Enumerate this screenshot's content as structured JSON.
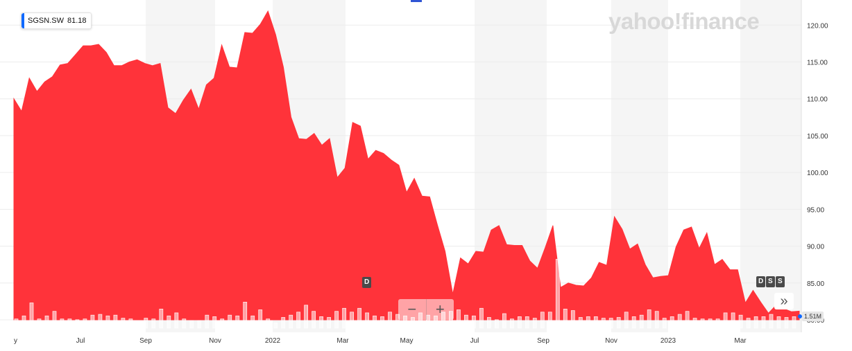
{
  "ticker": {
    "symbol": "SGSN.SW",
    "last_price": "81.18",
    "color": "#0f69ff"
  },
  "branding": {
    "logo_text": "yahoo!finance"
  },
  "markers": {
    "dividend": "D",
    "split_marks": [
      "D",
      "S",
      "S"
    ]
  },
  "controls": {
    "zoom_out_icon": "minus-icon",
    "zoom_in_icon": "plus-icon",
    "nav_icon": "double-chevron-right-icon",
    "zoom_out_label": "−",
    "zoom_in_label": "+",
    "nav_label": "»"
  },
  "volume_tag": "1.51M",
  "colors": {
    "area": "#ff333a",
    "volume_bar": "#ffffff",
    "band": "#f5f5f5"
  },
  "chart_data": {
    "type": "area",
    "title": "",
    "xlabel": "",
    "ylabel": "",
    "ylim": [
      80,
      122
    ],
    "x_ticks": [
      "y",
      "Jul",
      "Sep",
      "Nov",
      "2022",
      "Mar",
      "May",
      "Jul",
      "Sep",
      "Nov",
      "2023",
      "Mar"
    ],
    "y_ticks": [
      "80.00",
      "85.00",
      "90.00",
      "95.00",
      "100.00",
      "105.00",
      "110.00",
      "115.00",
      "120.00"
    ],
    "series": [
      {
        "values": [
          110.0,
          108.3,
          112.8,
          111.0,
          112.3,
          113.0,
          114.6,
          114.8,
          116.0,
          117.2,
          117.2,
          117.4,
          116.3,
          114.5,
          114.5,
          115.0,
          115.3,
          114.8,
          114.5,
          114.8,
          108.8,
          108.0,
          109.8,
          111.3,
          108.6,
          111.9,
          112.8,
          117.3,
          114.3,
          114.2,
          119.0,
          118.9,
          120.1,
          121.9,
          118.7,
          114.3,
          107.5,
          104.6,
          104.5,
          105.3,
          103.7,
          104.6,
          99.3,
          100.6,
          106.8,
          106.3,
          101.8,
          103.0,
          102.6,
          101.7,
          101.0,
          97.3,
          99.2,
          96.8,
          96.7,
          92.9,
          89.3,
          83.5,
          88.4,
          87.6,
          89.3,
          89.2,
          92.2,
          92.8,
          90.2,
          90.1,
          90.1,
          88.0,
          87.0,
          89.8,
          92.8,
          84.4,
          85.0,
          84.7,
          84.6,
          85.7,
          87.8,
          87.4,
          94.0,
          92.3,
          89.6,
          90.3,
          87.5,
          85.7,
          85.9,
          86.0,
          89.9,
          92.2,
          92.6,
          89.7,
          91.8,
          87.5,
          88.2,
          86.8,
          86.8,
          82.3,
          84.0,
          82.4,
          80.9,
          82.0,
          81.5,
          81.1,
          81.18
        ]
      }
    ],
    "volume": [
      1.2,
      1.6,
      3.3,
      1.2,
      1.6,
      2.2,
      1.2,
      1.2,
      1.1,
      1.2,
      1.7,
      1.8,
      1.6,
      1.7,
      1.3,
      1.2,
      1.0,
      1.3,
      1.2,
      2.5,
      1.6,
      2.0,
      1.2,
      1.0,
      1.0,
      1.7,
      1.5,
      1.2,
      1.7,
      1.6,
      3.4,
      1.6,
      2.4,
      1.2,
      0.7,
      1.4,
      1.7,
      2.1,
      3.0,
      2.2,
      1.5,
      1.4,
      2.2,
      2.6,
      2.1,
      2.6,
      2.0,
      1.6,
      1.5,
      2.1,
      1.8,
      1.6,
      1.4,
      2.0,
      1.7,
      1.6,
      2.1,
      2.2,
      2.4,
      1.7,
      1.6,
      2.6,
      1.4,
      1.1,
      1.9,
      1.2,
      1.5,
      1.5,
      1.3,
      2.1,
      2.1,
      9.0,
      2.5,
      2.3,
      1.4,
      1.5,
      1.5,
      1.3,
      1.3,
      1.4,
      2.1,
      1.5,
      1.7,
      2.4,
      2.2,
      1.3,
      1.5,
      1.8,
      2.2,
      1.3,
      1.2,
      1.2,
      1.2,
      2.0,
      2.0,
      1.7,
      1.3,
      1.5,
      1.5,
      1.8,
      1.5,
      1.4,
      1.5
    ],
    "volume_unit": "M",
    "grid": true,
    "alternating_month_bands": true
  }
}
